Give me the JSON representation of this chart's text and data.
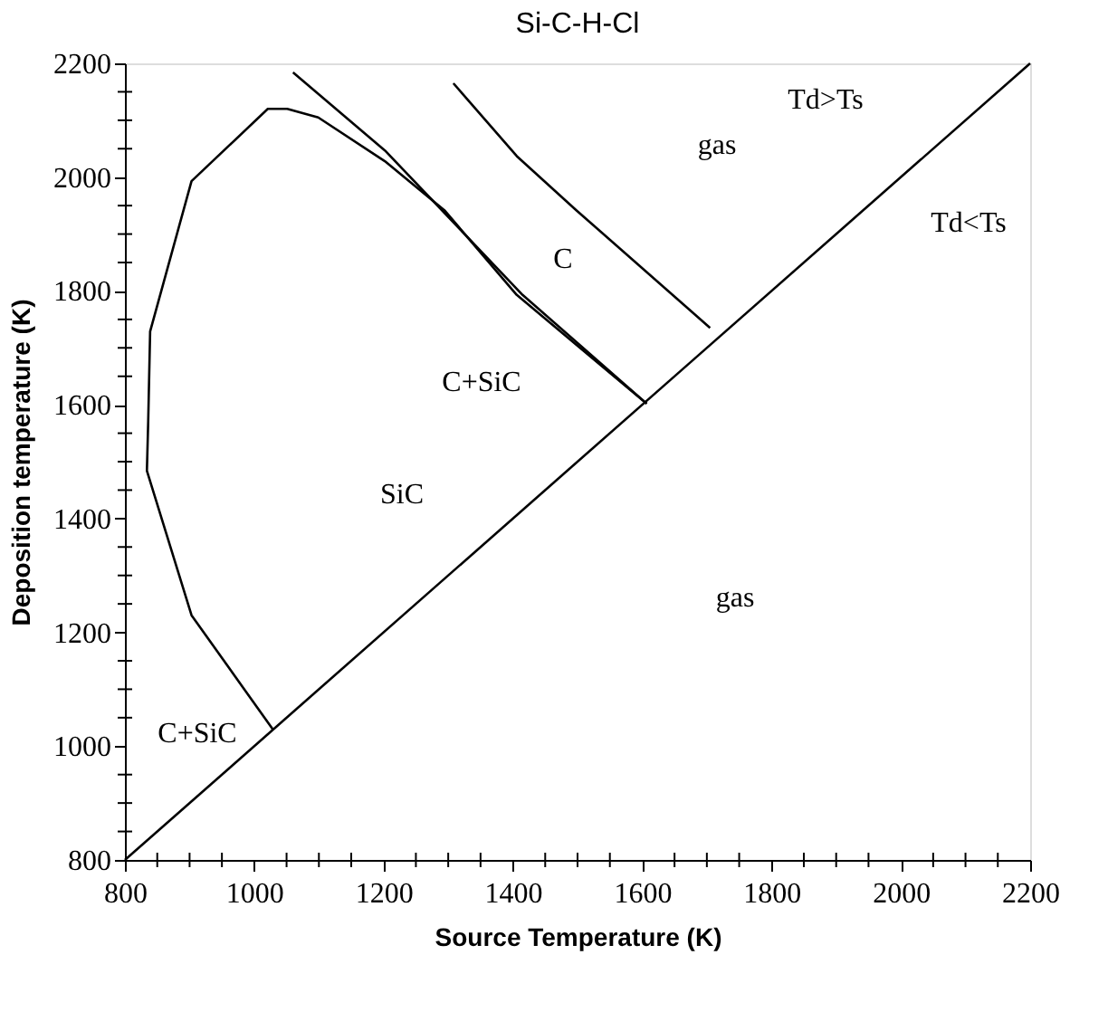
{
  "chart_data": {
    "type": "line",
    "title": "Si-C-H-Cl",
    "xlabel": "Source Temperature (K)",
    "ylabel": "Deposition temperature (K)",
    "xlim": [
      800,
      2200
    ],
    "ylim": [
      800,
      2200
    ],
    "xticks": [
      800,
      {
        "value": 850,
        "label": null
      },
      {
        "value": 900,
        "label": null
      },
      {
        "value": 950,
        "label": null
      },
      1000,
      {
        "value": 1050,
        "label": null
      },
      {
        "value": 1100,
        "label": null
      },
      {
        "value": 1150,
        "label": null
      },
      1200,
      {
        "value": 1250,
        "label": null
      },
      {
        "value": 1300,
        "label": null
      },
      {
        "value": 1350,
        "label": null
      },
      1400,
      {
        "value": 1450,
        "label": null
      },
      {
        "value": 1500,
        "label": null
      },
      {
        "value": 1550,
        "label": null
      },
      1600,
      {
        "value": 1650,
        "label": null
      },
      {
        "value": 1700,
        "label": null
      },
      {
        "value": 1750,
        "label": null
      },
      1800,
      {
        "value": 1850,
        "label": null
      },
      {
        "value": 1900,
        "label": null
      },
      {
        "value": 1950,
        "label": null
      },
      2000,
      {
        "value": 2050,
        "label": null
      },
      {
        "value": 2100,
        "label": null
      },
      {
        "value": 2150,
        "label": null
      },
      2200
    ],
    "yticks": [
      800,
      {
        "value": 850,
        "label": null
      },
      {
        "value": 900,
        "label": null
      },
      {
        "value": 950,
        "label": null
      },
      1000,
      {
        "value": 1050,
        "label": null
      },
      {
        "value": 1100,
        "label": null
      },
      {
        "value": 1150,
        "label": null
      },
      1200,
      {
        "value": 1250,
        "label": null
      },
      {
        "value": 1300,
        "label": null
      },
      {
        "value": 1350,
        "label": null
      },
      1400,
      {
        "value": 1450,
        "label": null
      },
      {
        "value": 1500,
        "label": null
      },
      {
        "value": 1550,
        "label": null
      },
      1600,
      {
        "value": 1650,
        "label": null
      },
      {
        "value": 1700,
        "label": null
      },
      {
        "value": 1750,
        "label": null
      },
      1800,
      {
        "value": 1850,
        "label": null
      },
      {
        "value": 1900,
        "label": null
      },
      {
        "value": 1950,
        "label": null
      },
      2000,
      {
        "value": 2050,
        "label": null
      },
      {
        "value": 2100,
        "label": null
      },
      {
        "value": 2150,
        "label": null
      },
      2200
    ],
    "grid": false,
    "legend": false,
    "marker": "none",
    "line_style": "solid",
    "series": [
      {
        "color": "#000000",
        "x": [
          800,
          2200
        ],
        "values": [
          800,
          2200
        ]
      },
      {
        "color": "#000000",
        "x": [
          1029,
          903,
          834,
          836,
          839,
          903,
          1021,
          1051,
          1099,
          1202,
          1294,
          1406,
          1607
        ],
        "values": [
          1029,
          1230,
          1484,
          1570,
          1729,
          1993,
          2120,
          2120,
          2105,
          2028,
          1942,
          1793,
          1602
        ]
      },
      {
        "color": "#000000",
        "x": [
          1060,
          1202,
          1415,
          1607
        ],
        "values": [
          2184,
          2047,
          1793,
          1602
        ]
      },
      {
        "color": "#000000",
        "x": [
          1308,
          1406,
          1498,
          1705
        ],
        "values": [
          2165,
          2037,
          1942,
          1735
        ]
      }
    ],
    "annotations": [
      "gas",
      "C",
      "C+SiC",
      "SiC",
      "gas",
      "C+SiC",
      "Td>Ts",
      "Td<Ts"
    ]
  }
}
